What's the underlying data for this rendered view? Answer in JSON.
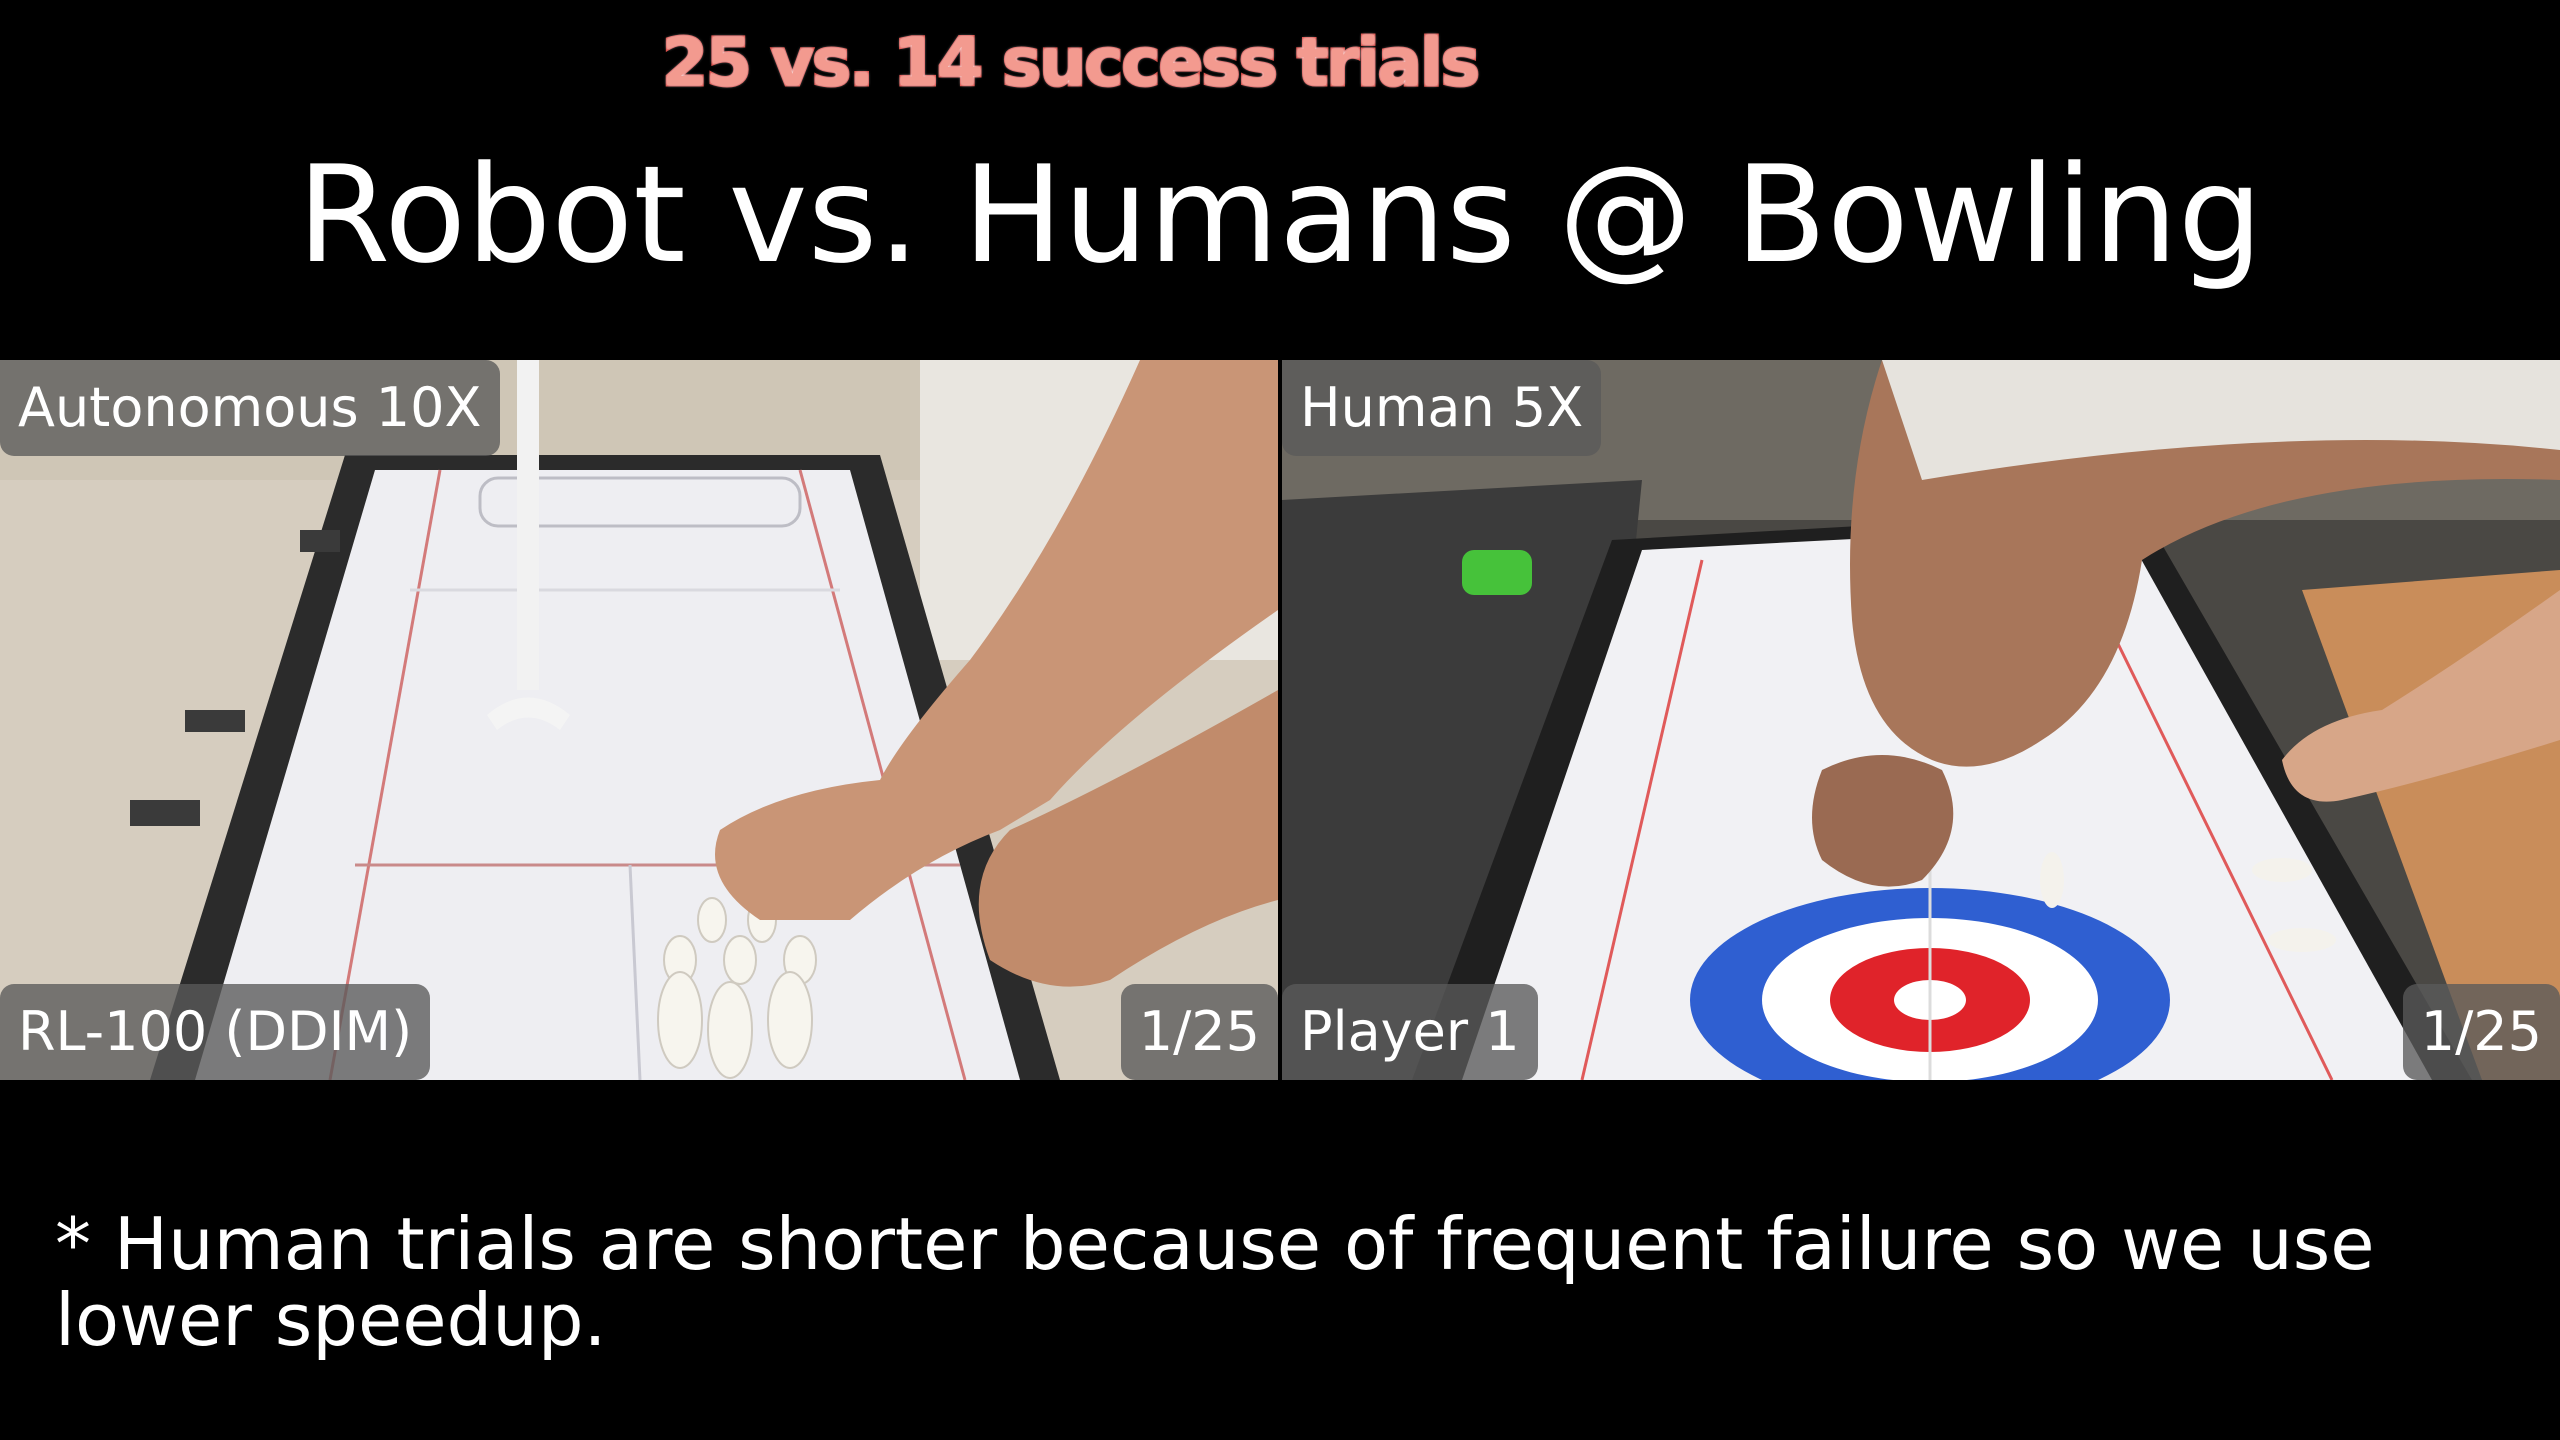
{
  "highlight": "25 vs. 14 success trials",
  "title": "Robot vs. Humans @ Bowling",
  "colors": {
    "background": "#000000",
    "highlight_fill": "#f39a8f",
    "highlight_stroke": "#d94a44",
    "overlay_bg": "#5a5a5a",
    "text": "#ffffff",
    "curling_blue": "#2f5fd1",
    "curling_red": "#e0232a"
  },
  "left_panel": {
    "mode_label": "Autonomous 10X",
    "method_label": "RL-100 (DDIM)",
    "counter": "1/25"
  },
  "right_panel": {
    "mode_label": "Human 5X",
    "player_label": "Player 1",
    "counter": "1/25"
  },
  "footnote": "* Human trials are shorter because of frequent failure so we use lower speedup."
}
